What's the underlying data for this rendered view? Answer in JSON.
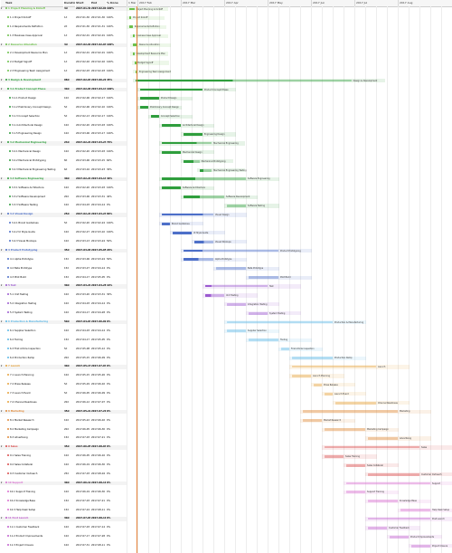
{
  "grid": {
    "columns": [
      "",
      "Task",
      "Duration",
      "Start",
      "End",
      "% Done"
    ]
  },
  "timeline": {
    "months": [
      "1 Mar",
      "2017 Feb",
      "2017 Mar",
      "2017 Apr",
      "2017 May",
      "2017 Jun",
      "2017 Jul",
      "2017 Aug"
    ]
  },
  "phase_colors": {
    "Prep": "#6cc04a",
    "Design & Development": "#2f9e3d",
    "Product Design": "#4d6fc8",
    "Test": "#9b59d0",
    "UX": "#d47fd6",
    "Production & Manufacturing": "#5cb8e6",
    "Business Transition": "#aaaaaa",
    "Launch": "#e6a23c",
    "Marketing": "#e08a3a",
    "Sales": "#d94a4a",
    "Support": "#d86fd0",
    "Post Launch": "#c15fcf"
  },
  "tasks": [
    {
      "id": "1",
      "name": "Project Planning & Kickoff",
      "dur": "3d",
      "start": "2017-01-30",
      "end": "2017-02-01",
      "done": "100%",
      "phase": true,
      "color": "#6cc04a"
    },
    {
      "id": "1.1",
      "name": "Project Kickoff",
      "dur": "1d",
      "start": "2017-01-30",
      "end": "2017-01-30",
      "done": "100%",
      "color": "#6cc04a"
    },
    {
      "id": "1.2",
      "name": "Requirements Definition",
      "dur": "2d",
      "start": "2017-01-30",
      "end": "2017-01-31",
      "done": "100%",
      "color": "#6cc04a"
    },
    {
      "id": "1.3",
      "name": "Business Case Approval",
      "dur": "1d",
      "start": "2017-02-01",
      "end": "2017-02-01",
      "done": "100%",
      "color": "#6cc04a"
    },
    {
      "id": "2",
      "name": "Resource Allocation",
      "dur": "3d",
      "start": "2017-02-01",
      "end": "2017-02-03",
      "done": "100%",
      "phase": true,
      "color": "#6cc04a"
    },
    {
      "id": "2.1",
      "name": "Development Resource Plan",
      "dur": "1d",
      "start": "2017-02-01",
      "end": "2017-02-01",
      "done": "100%",
      "color": "#6cc04a"
    },
    {
      "id": "2.2",
      "name": "Budget Signoff",
      "dur": "1d",
      "start": "2017-02-02",
      "end": "2017-02-02",
      "done": "100%",
      "color": "#6cc04a"
    },
    {
      "id": "2.3",
      "name": "Engineering Team Assignment",
      "dur": "1d",
      "start": "2017-02-03",
      "end": "2017-02-03",
      "done": "100%",
      "color": "#6cc04a"
    },
    {
      "id": "3",
      "name": "Design & Development",
      "dur": "98d",
      "start": "2017-02-03",
      "end": "2017-06-21",
      "done": "45%",
      "phase": true,
      "color": "#2f9e3d"
    },
    {
      "id": "3.1",
      "name": "Product Concept Phase",
      "dur": "30d",
      "start": "2017-02-06",
      "end": "2017-03-17",
      "done": "100%",
      "phase": true,
      "color": "#2f9e3d"
    },
    {
      "id": "3.1.1",
      "name": "Product Design",
      "dur": "10d",
      "start": "2017-02-06",
      "end": "2017-02-17",
      "done": "100%",
      "color": "#2f9e3d"
    },
    {
      "id": "3.1.2",
      "name": "Preliminary Concept Design",
      "dur": "5d",
      "start": "2017-02-06",
      "end": "2017-02-10",
      "done": "100%",
      "color": "#2f9e3d"
    },
    {
      "id": "3.1.3",
      "name": "Concept Selection",
      "dur": "5d",
      "start": "2017-02-13",
      "end": "2017-02-17",
      "done": "100%",
      "color": "#2f9e3d"
    },
    {
      "id": "3.1.4",
      "name": "Architectural Design",
      "dur": "10d",
      "start": "2017-02-20",
      "end": "2017-03-03",
      "done": "100%",
      "color": "#2f9e3d"
    },
    {
      "id": "3.1.5",
      "name": "Engineering Design",
      "dur": "10d",
      "start": "2017-03-06",
      "end": "2017-03-17",
      "done": "100%",
      "color": "#2f9e3d"
    },
    {
      "id": "3.2",
      "name": "Mechanical Engineering",
      "dur": "24d",
      "start": "2017-02-20",
      "end": "2017-03-23",
      "done": "70%",
      "phase": true,
      "color": "#2f9e3d"
    },
    {
      "id": "3.2.1",
      "name": "Mechanical Design",
      "dur": "10d",
      "start": "2017-02-20",
      "end": "2017-03-03",
      "done": "100%",
      "color": "#2f9e3d"
    },
    {
      "id": "3.2.2",
      "name": "Mechanical Prototyping",
      "dur": "8d",
      "start": "2017-03-06",
      "end": "2017-03-15",
      "done": "60%",
      "color": "#2f9e3d"
    },
    {
      "id": "3.2.3",
      "name": "Mechanical Engineering Testing",
      "dur": "6d",
      "start": "2017-03-16",
      "end": "2017-03-23",
      "done": "30%",
      "color": "#2f9e3d"
    },
    {
      "id": "3.3",
      "name": "Software Engineering",
      "dur": "40d",
      "start": "2017-02-20",
      "end": "2017-04-14",
      "done": "40%",
      "phase": true,
      "color": "#2f9e3d"
    },
    {
      "id": "3.3.1",
      "name": "Software Architecture",
      "dur": "10d",
      "start": "2017-02-20",
      "end": "2017-03-03",
      "done": "100%",
      "color": "#2f9e3d"
    },
    {
      "id": "3.3.2",
      "name": "Software Development",
      "dur": "20d",
      "start": "2017-03-06",
      "end": "2017-03-31",
      "done": "40%",
      "color": "#2f9e3d"
    },
    {
      "id": "3.3.3",
      "name": "Software Testing",
      "dur": "10d",
      "start": "2017-04-03",
      "end": "2017-04-14",
      "done": "0%",
      "color": "#2f9e3d"
    },
    {
      "id": "3.4",
      "name": "Visual Design",
      "dur": "25d",
      "start": "2017-02-20",
      "end": "2017-03-24",
      "done": "80%",
      "phase": true,
      "color": "#4d6fc8"
    },
    {
      "id": "3.4.1",
      "name": "Brand Guidelines",
      "dur": "5d",
      "start": "2017-02-20",
      "end": "2017-02-24",
      "done": "100%",
      "color": "#4d6fc8"
    },
    {
      "id": "3.4.2",
      "name": "UI Style Guide",
      "dur": "10d",
      "start": "2017-02-27",
      "end": "2017-03-10",
      "done": "100%",
      "color": "#4d6fc8"
    },
    {
      "id": "3.4.3",
      "name": "Visual Mockups",
      "dur": "10d",
      "start": "2017-03-13",
      "end": "2017-03-24",
      "done": "50%",
      "color": "#4d6fc8"
    },
    {
      "id": "4",
      "name": "Product Prototyping",
      "dur": "45d",
      "start": "2017-03-06",
      "end": "2017-05-05",
      "done": "20%",
      "phase": true,
      "color": "#4d6fc8"
    },
    {
      "id": "4.1",
      "name": "Alpha Prototype",
      "dur": "15d",
      "start": "2017-03-06",
      "end": "2017-03-24",
      "done": "50%",
      "color": "#4d6fc8"
    },
    {
      "id": "4.2",
      "name": "Beta Prototype",
      "dur": "15d",
      "start": "2017-03-27",
      "end": "2017-04-14",
      "done": "0%",
      "color": "#4d6fc8"
    },
    {
      "id": "4.3",
      "name": "Pilot Build",
      "dur": "15d",
      "start": "2017-04-17",
      "end": "2017-05-05",
      "done": "0%",
      "color": "#4d6fc8"
    },
    {
      "id": "5",
      "name": "Test",
      "dur": "30d",
      "start": "2017-03-20",
      "end": "2017-04-28",
      "done": "10%",
      "phase": true,
      "color": "#9b59d0"
    },
    {
      "id": "5.1",
      "name": "Unit Testing",
      "dur": "10d",
      "start": "2017-03-20",
      "end": "2017-03-31",
      "done": "30%",
      "color": "#9b59d0"
    },
    {
      "id": "5.2",
      "name": "Integration Testing",
      "dur": "10d",
      "start": "2017-04-03",
      "end": "2017-04-14",
      "done": "0%",
      "color": "#9b59d0"
    },
    {
      "id": "5.3",
      "name": "System Testing",
      "dur": "10d",
      "start": "2017-04-17",
      "end": "2017-04-28",
      "done": "0%",
      "color": "#9b59d0"
    },
    {
      "id": "6",
      "name": "Production & Manufacturing",
      "dur": "50d",
      "start": "2017-04-03",
      "end": "2017-06-09",
      "done": "0%",
      "phase": true,
      "color": "#5cb8e6"
    },
    {
      "id": "6.1",
      "name": "Supplier Selection",
      "dur": "10d",
      "start": "2017-04-03",
      "end": "2017-04-14",
      "done": "0%",
      "color": "#5cb8e6"
    },
    {
      "id": "6.2",
      "name": "Tooling",
      "dur": "15d",
      "start": "2017-04-17",
      "end": "2017-05-05",
      "done": "0%",
      "color": "#5cb8e6"
    },
    {
      "id": "6.3",
      "name": "First Article Inspection",
      "dur": "5d",
      "start": "2017-05-08",
      "end": "2017-05-12",
      "done": "0%",
      "color": "#5cb8e6"
    },
    {
      "id": "6.4",
      "name": "Production Ramp",
      "dur": "20d",
      "start": "2017-05-15",
      "end": "2017-06-09",
      "done": "0%",
      "color": "#5cb8e6"
    },
    {
      "id": "7",
      "name": "Launch",
      "dur": "40d",
      "start": "2017-05-15",
      "end": "2017-07-07",
      "done": "0%",
      "phase": true,
      "color": "#e6a23c"
    },
    {
      "id": "7.1",
      "name": "Launch Planning",
      "dur": "10d",
      "start": "2017-05-15",
      "end": "2017-05-26",
      "done": "0%",
      "color": "#e6a23c"
    },
    {
      "id": "7.2",
      "name": "Press Release",
      "dur": "5d",
      "start": "2017-05-29",
      "end": "2017-06-02",
      "done": "0%",
      "color": "#e6a23c"
    },
    {
      "id": "7.3",
      "name": "Launch Event",
      "dur": "5d",
      "start": "2017-06-05",
      "end": "2017-06-09",
      "done": "0%",
      "color": "#e6a23c"
    },
    {
      "id": "7.4",
      "name": "Channel Readiness",
      "dur": "20d",
      "start": "2017-06-12",
      "end": "2017-07-07",
      "done": "0%",
      "color": "#e6a23c"
    },
    {
      "id": "8",
      "name": "Marketing",
      "dur": "45d",
      "start": "2017-05-22",
      "end": "2017-07-21",
      "done": "0%",
      "phase": true,
      "color": "#e08a3a"
    },
    {
      "id": "8.1",
      "name": "Market Research",
      "dur": "10d",
      "start": "2017-05-22",
      "end": "2017-06-02",
      "done": "0%",
      "color": "#e08a3a"
    },
    {
      "id": "8.2",
      "name": "Marketing Campaign",
      "dur": "20d",
      "start": "2017-06-05",
      "end": "2017-06-30",
      "done": "0%",
      "color": "#e08a3a"
    },
    {
      "id": "8.3",
      "name": "Advertising",
      "dur": "15d",
      "start": "2017-07-03",
      "end": "2017-07-21",
      "done": "0%",
      "color": "#e08a3a"
    },
    {
      "id": "9",
      "name": "Sales",
      "dur": "45d",
      "start": "2017-06-05",
      "end": "2017-08-04",
      "done": "0%",
      "phase": true,
      "color": "#d94a4a"
    },
    {
      "id": "9.1",
      "name": "Sales Training",
      "dur": "10d",
      "start": "2017-06-05",
      "end": "2017-06-16",
      "done": "0%",
      "color": "#d94a4a"
    },
    {
      "id": "9.2",
      "name": "Sales Collateral",
      "dur": "10d",
      "start": "2017-06-19",
      "end": "2017-06-30",
      "done": "0%",
      "color": "#d94a4a"
    },
    {
      "id": "9.3",
      "name": "Customer Outreach",
      "dur": "25d",
      "start": "2017-07-03",
      "end": "2017-08-04",
      "done": "0%",
      "color": "#d94a4a"
    },
    {
      "id": "10",
      "name": "Support",
      "dur": "40d",
      "start": "2017-06-19",
      "end": "2017-08-11",
      "done": "0%",
      "phase": true,
      "color": "#d86fd0"
    },
    {
      "id": "10.1",
      "name": "Support Training",
      "dur": "10d",
      "start": "2017-06-19",
      "end": "2017-06-30",
      "done": "0%",
      "color": "#d86fd0"
    },
    {
      "id": "10.2",
      "name": "Knowledge Base",
      "dur": "15d",
      "start": "2017-07-03",
      "end": "2017-07-21",
      "done": "0%",
      "color": "#d86fd0"
    },
    {
      "id": "10.3",
      "name": "Help Desk Setup",
      "dur": "15d",
      "start": "2017-07-24",
      "end": "2017-08-11",
      "done": "0%",
      "color": "#d86fd0"
    },
    {
      "id": "11",
      "name": "Post Launch",
      "dur": "30d",
      "start": "2017-07-03",
      "end": "2017-08-11",
      "done": "0%",
      "phase": true,
      "color": "#c15fcf"
    },
    {
      "id": "11.1",
      "name": "Customer Feedback",
      "dur": "10d",
      "start": "2017-07-03",
      "end": "2017-07-14",
      "done": "0%",
      "color": "#c15fcf"
    },
    {
      "id": "11.2",
      "name": "Product Improvements",
      "dur": "10d",
      "start": "2017-07-17",
      "end": "2017-07-28",
      "done": "0%",
      "color": "#c15fcf"
    },
    {
      "id": "11.3",
      "name": "Project Closure",
      "dur": "10d",
      "start": "2017-07-31",
      "end": "2017-08-11",
      "done": "0%",
      "color": "#c15fcf"
    }
  ]
}
